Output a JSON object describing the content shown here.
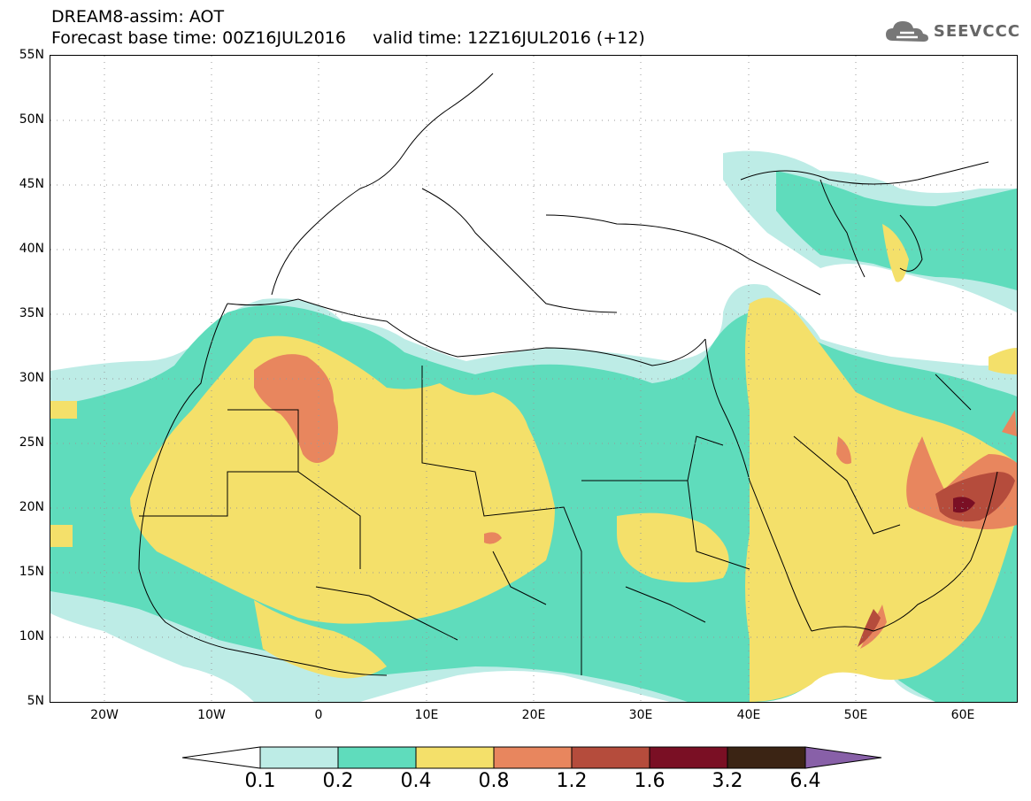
{
  "header": {
    "title_line1": "DREAM8-assim: AOT",
    "title_line2": "Forecast base time: 00Z16JUL2016     valid time: 12Z16JUL2016 (+12)",
    "brand": "SEEVCCC"
  },
  "map": {
    "lat_labels": [
      "55N",
      "50N",
      "45N",
      "40N",
      "35N",
      "30N",
      "25N",
      "20N",
      "15N",
      "10N",
      "5N"
    ],
    "lon_labels": [
      "20W",
      "10W",
      "0",
      "10E",
      "20E",
      "30E",
      "40E",
      "50E",
      "60E"
    ],
    "lon_range": [
      -25,
      65
    ],
    "lat_range": [
      5,
      55
    ]
  },
  "legend": {
    "labels": [
      "0.1",
      "0.2",
      "0.4",
      "0.8",
      "1.2",
      "1.6",
      "3.2",
      "6.4"
    ],
    "colors": [
      "#ffffff",
      "#bdece6",
      "#5fdcbc",
      "#f4e06a",
      "#e8865e",
      "#b54c3c",
      "#7a0f24",
      "#3b2414",
      "#8860a8"
    ]
  },
  "colors": {
    "c01": "#bdece6",
    "c02": "#5fdcbc",
    "c04": "#f4e06a",
    "c08": "#e8865e",
    "c12": "#b54c3c",
    "c16": "#7a0f24"
  }
}
